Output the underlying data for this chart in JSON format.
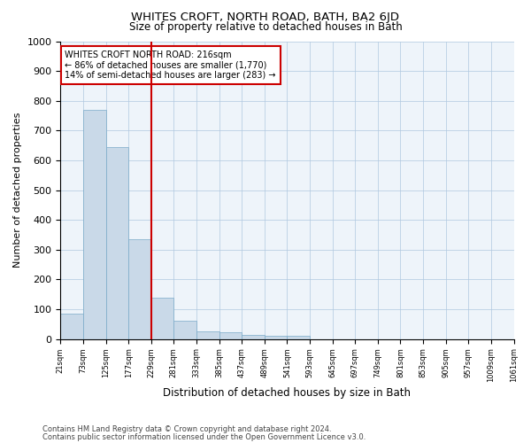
{
  "title": "WHITES CROFT, NORTH ROAD, BATH, BA2 6JD",
  "subtitle": "Size of property relative to detached houses in Bath",
  "xlabel": "Distribution of detached houses by size in Bath",
  "ylabel": "Number of detached properties",
  "bar_values": [
    85,
    770,
    645,
    335,
    138,
    62,
    27,
    22,
    13,
    10,
    12,
    0,
    0,
    0,
    0,
    0,
    0,
    0,
    0,
    0
  ],
  "bar_labels": [
    "21sqm",
    "73sqm",
    "125sqm",
    "177sqm",
    "229sqm",
    "281sqm",
    "333sqm",
    "385sqm",
    "437sqm",
    "489sqm",
    "541sqm",
    "593sqm",
    "645sqm",
    "697sqm",
    "749sqm",
    "801sqm",
    "853sqm",
    "905sqm",
    "957sqm",
    "1009sqm",
    "1061sqm"
  ],
  "bar_color": "#c9d9e8",
  "bar_edgecolor": "#7aaac8",
  "vline_x": 4,
  "vline_color": "#cc0000",
  "ylim": [
    0,
    1000
  ],
  "yticks": [
    0,
    100,
    200,
    300,
    400,
    500,
    600,
    700,
    800,
    900,
    1000
  ],
  "annotation_title": "WHITES CROFT NORTH ROAD: 216sqm",
  "annotation_line1": "← 86% of detached houses are smaller (1,770)",
  "annotation_line2": "14% of semi-detached houses are larger (283) →",
  "annotation_box_color": "#cc0000",
  "footer1": "Contains HM Land Registry data © Crown copyright and database right 2024.",
  "footer2": "Contains public sector information licensed under the Open Government Licence v3.0.",
  "grid_color": "#b0c8e0",
  "bg_color": "#eef4fa"
}
